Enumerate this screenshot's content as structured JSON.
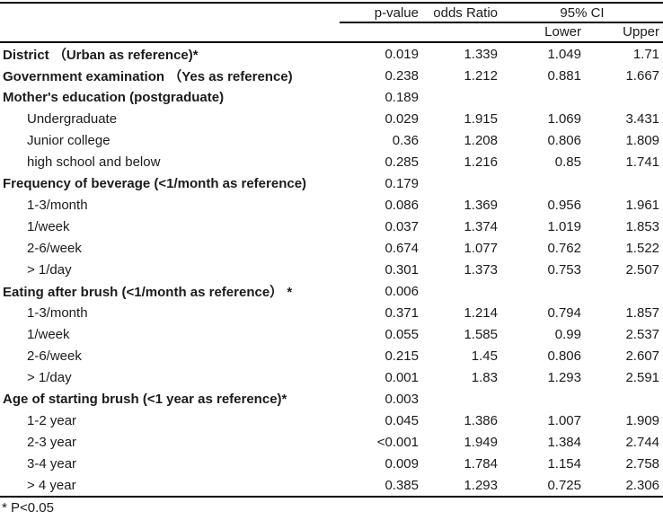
{
  "page": {
    "background_color": "#ffffff",
    "text_color": "#1b1b1b",
    "rule_color": "#000000"
  },
  "chart_data": {
    "type": "table",
    "header": {
      "p_value": "p-value",
      "odds_ratio": "odds Ratio",
      "ci_group": "95% CI",
      "ci_lower": "Lower",
      "ci_upper": "Upper"
    },
    "rows": [
      {
        "label": "District （Urban as reference)*",
        "style": "category",
        "p": "0.019",
        "or": "1.339",
        "lower": "1.049",
        "upper": "1.71"
      },
      {
        "label": "Government examination （Yes as reference)",
        "style": "category",
        "p": "0.238",
        "or": "1.212",
        "lower": "0.881",
        "upper": "1.667"
      },
      {
        "label": "Mother's education (postgraduate)",
        "style": "category",
        "p": "0.189",
        "or": "",
        "lower": "",
        "upper": ""
      },
      {
        "label": "Undergraduate",
        "style": "sub",
        "p": "0.029",
        "or": "1.915",
        "lower": "1.069",
        "upper": "3.431"
      },
      {
        "label": "Junior college",
        "style": "sub",
        "p": "0.36",
        "or": "1.208",
        "lower": "0.806",
        "upper": "1.809"
      },
      {
        "label": "high school and below",
        "style": "sub",
        "p": "0.285",
        "or": "1.216",
        "lower": "0.85",
        "upper": "1.741"
      },
      {
        "label": "Frequency of beverage (<1/month as reference)",
        "style": "category",
        "p": "0.179",
        "or": "",
        "lower": "",
        "upper": ""
      },
      {
        "label": "1-3/month",
        "style": "sub",
        "p": "0.086",
        "or": "1.369",
        "lower": "0.956",
        "upper": "1.961"
      },
      {
        "label": "1/week",
        "style": "sub",
        "p": "0.037",
        "or": "1.374",
        "lower": "1.019",
        "upper": "1.853"
      },
      {
        "label": "2-6/week",
        "style": "sub",
        "p": "0.674",
        "or": "1.077",
        "lower": "0.762",
        "upper": "1.522"
      },
      {
        "label": "> 1/day",
        "style": "sub",
        "p": "0.301",
        "or": "1.373",
        "lower": "0.753",
        "upper": "2.507"
      },
      {
        "label": "Eating after brush (<1/month as reference） *",
        "style": "category",
        "p": "0.006",
        "or": "",
        "lower": "",
        "upper": ""
      },
      {
        "label": "1-3/month",
        "style": "sub",
        "p": "0.371",
        "or": "1.214",
        "lower": "0.794",
        "upper": "1.857"
      },
      {
        "label": "1/week",
        "style": "sub",
        "p": "0.055",
        "or": "1.585",
        "lower": "0.99",
        "upper": "2.537"
      },
      {
        "label": "2-6/week",
        "style": "sub",
        "p": "0.215",
        "or": "1.45",
        "lower": "0.806",
        "upper": "2.607"
      },
      {
        "label": "> 1/day",
        "style": "sub",
        "p": "0.001",
        "or": "1.83",
        "lower": "1.293",
        "upper": "2.591"
      },
      {
        "label": "Age of starting brush (<1 year as reference)*",
        "style": "category",
        "p": "0.003",
        "or": "",
        "lower": "",
        "upper": ""
      },
      {
        "label": "1-2 year",
        "style": "sub",
        "p": "0.045",
        "or": "1.386",
        "lower": "1.007",
        "upper": "1.909"
      },
      {
        "label": "2-3 year",
        "style": "sub",
        "p": "<0.001",
        "or": "1.949",
        "lower": "1.384",
        "upper": "2.744"
      },
      {
        "label": "3-4 year",
        "style": "sub",
        "p": "0.009",
        "or": "1.784",
        "lower": "1.154",
        "upper": "2.758"
      },
      {
        "label": "> 4 year",
        "style": "sub",
        "p": "0.385",
        "or": "1.293",
        "lower": "0.725",
        "upper": "2.306"
      }
    ],
    "footnote": "* P<0.05"
  }
}
